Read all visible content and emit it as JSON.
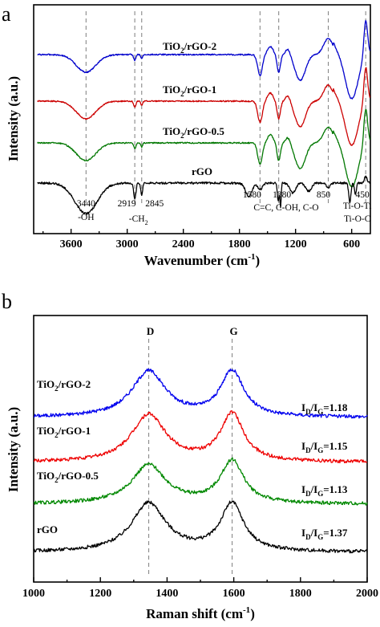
{
  "panel_a": {
    "letter": "a",
    "chart_data": {
      "type": "line",
      "xlabel": "Wavenumber (cm",
      "xlabel_sup": "-1",
      "xlabel_end": ")",
      "ylabel": "Intensity (a.u.)",
      "xlim": [
        4000,
        400
      ],
      "xticks": [
        "3600",
        "3000",
        "2400",
        "1800",
        "1200",
        "600"
      ],
      "xtick_values": [
        3600,
        3000,
        2400,
        1800,
        1200,
        600
      ],
      "series": [
        {
          "name": "TiO2/rGO-2",
          "label_main": "TiO",
          "label_sub": "2",
          "label_end": "/rGO-2",
          "color": "#0000cc",
          "offset": 3
        },
        {
          "name": "TiO2/rGO-1",
          "label_main": "TiO",
          "label_sub": "2",
          "label_end": "/rGO-1",
          "color": "#cc0000",
          "offset": 2
        },
        {
          "name": "TiO2/rGO-0.5",
          "label_main": "TiO",
          "label_sub": "2",
          "label_end": "/rGO-0.5",
          "color": "#007700",
          "offset": 1
        },
        {
          "name": "rGO",
          "label_main": "rGO",
          "label_sub": "",
          "label_end": "",
          "color": "#000000",
          "offset": 0
        }
      ],
      "markers": [
        3440,
        2919,
        2845,
        1580,
        1380,
        850,
        450
      ],
      "annotations": [
        {
          "text": "3440",
          "x": 3440
        },
        {
          "text": "-OH",
          "x": 3440
        },
        {
          "text": "2919",
          "x": 2919
        },
        {
          "text": "2845",
          "x": 2845
        },
        {
          "text": "-CH",
          "sub": "2",
          "x": 2880
        },
        {
          "text": "1580",
          "x": 1580
        },
        {
          "text": "1380",
          "x": 1380
        },
        {
          "text": "850",
          "x": 850
        },
        {
          "text": "450",
          "x": 450
        },
        {
          "text": "C=C, C-OH, C-O",
          "x": 1380
        },
        {
          "text": "Ti-O-Ti",
          "x": 590
        },
        {
          "text": "Ti-O-C",
          "x": 590
        }
      ]
    }
  },
  "panel_b": {
    "letter": "b",
    "chart_data": {
      "type": "line",
      "xlabel": "Raman shift (cm",
      "xlabel_sup": "-1",
      "xlabel_end": ")",
      "ylabel": "Intensity (a.u.)",
      "xlim": [
        1000,
        2000
      ],
      "xticks": [
        "1000",
        "1200",
        "1400",
        "1600",
        "1800",
        "2000"
      ],
      "xtick_values": [
        1000,
        1200,
        1400,
        1600,
        1800,
        2000
      ],
      "peaks": [
        {
          "label": "D",
          "x": 1345
        },
        {
          "label": "G",
          "x": 1595
        }
      ],
      "series": [
        {
          "name": "TiO2/rGO-2",
          "label_main": "TiO",
          "label_sub": "2",
          "label_end": "/rGO-2",
          "color": "#0000ee",
          "ratio": "1.18"
        },
        {
          "name": "TiO2/rGO-1",
          "label_main": "TiO",
          "label_sub": "2",
          "label_end": "/rGO-1",
          "color": "#ee0000",
          "ratio": "1.15"
        },
        {
          "name": "TiO2/rGO-0.5",
          "label_main": "TiO",
          "label_sub": "2",
          "label_end": "/rGO-0.5",
          "color": "#008800",
          "ratio": "1.13"
        },
        {
          "name": "rGO",
          "label_main": "rGO",
          "label_sub": "",
          "label_end": "",
          "color": "#000000",
          "ratio": "1.37"
        }
      ],
      "ratio_prefix": "I",
      "ratio_sub_d": "D",
      "ratio_mid": "/I",
      "ratio_sub_g": "G",
      "ratio_eq": "="
    }
  }
}
